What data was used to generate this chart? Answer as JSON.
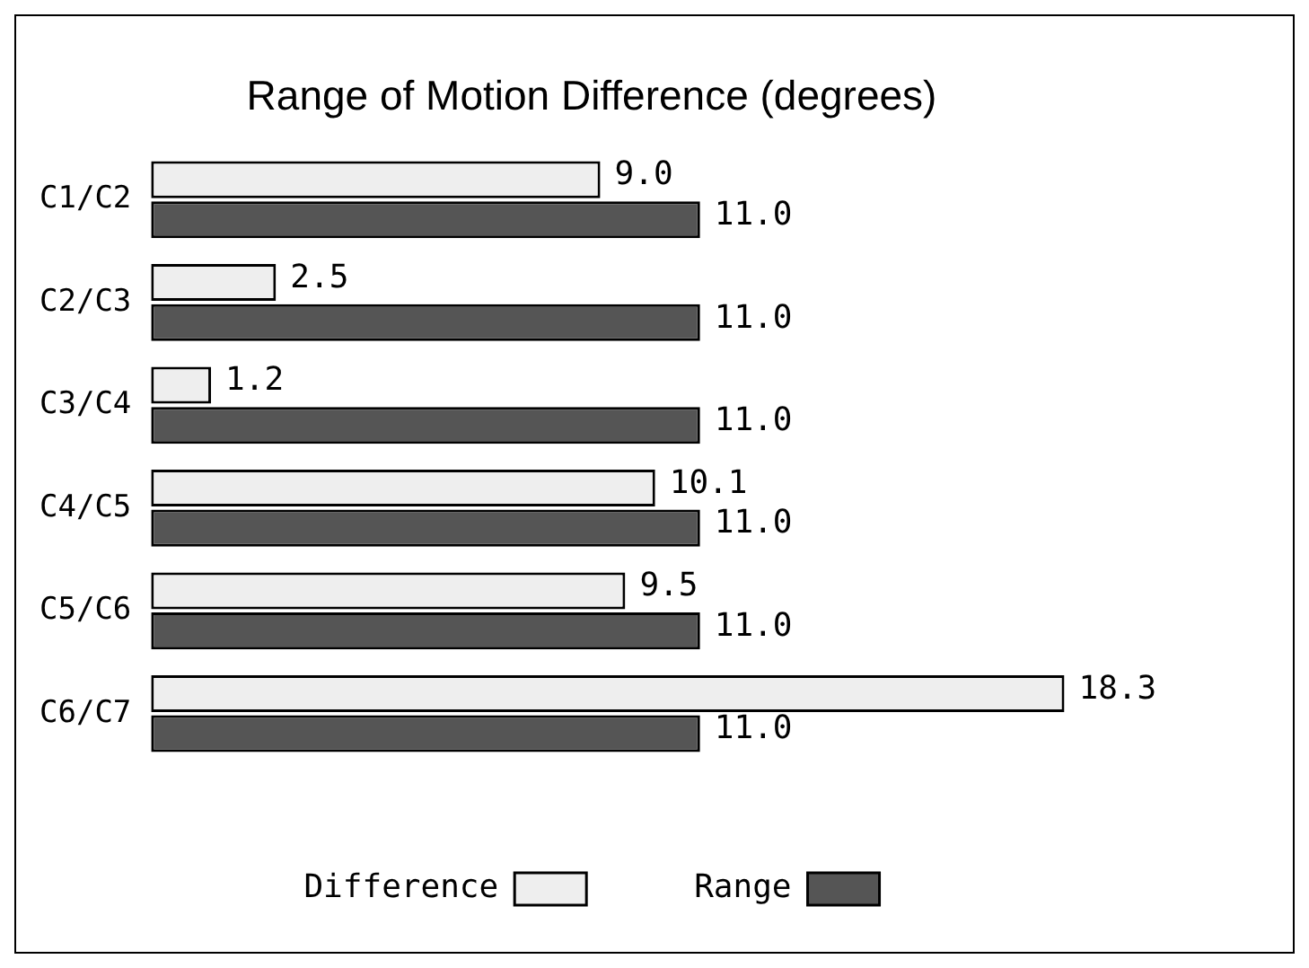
{
  "chart_data": {
    "type": "bar",
    "orientation": "horizontal",
    "title": "Range of Motion Difference (degrees)",
    "tick_labels": "y",
    "categories": [
      "C1/C2",
      "C2/C3",
      "C3/C4",
      "C4/C5",
      "C5/C6",
      "C6/C7"
    ],
    "series": [
      {
        "name": "Difference",
        "color": "#eeeeee",
        "values": [
          9.0,
          2.5,
          1.2,
          10.1,
          9.5,
          18.3
        ],
        "value_labels": [
          "9.0",
          "2.5",
          "1.2",
          "10.1",
          "9.5",
          "18.3"
        ]
      },
      {
        "name": "Range",
        "color": "#555555",
        "values": [
          11.0,
          11.0,
          11.0,
          11.0,
          11.0,
          11.0
        ],
        "value_labels": [
          "11.0",
          "11.0",
          "11.0",
          "11.0",
          "11.0",
          "11.0"
        ]
      }
    ],
    "legend": "bottom",
    "grid": false
  }
}
